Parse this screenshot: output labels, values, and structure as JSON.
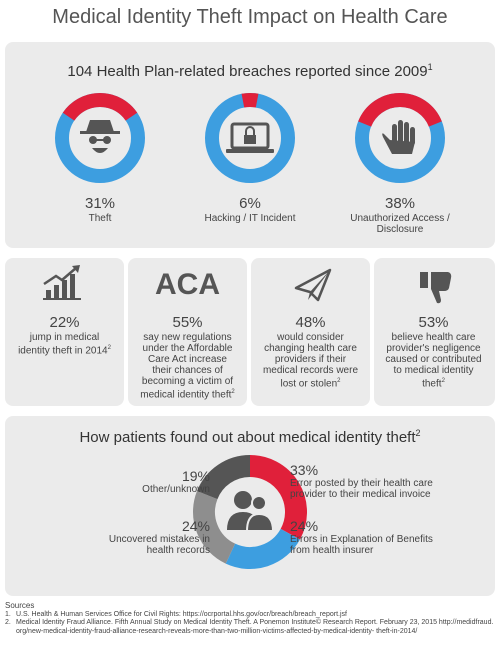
{
  "title": "Medical Identity Theft Impact on Health Care",
  "breaches": {
    "heading": "104 Health Plan-related breaches reported since 2009",
    "footnote": "1",
    "accent_color": "#e0203a",
    "base_color": "#3d9ee0",
    "donuts": [
      {
        "value": 31,
        "label": "31%",
        "caption": "Theft"
      },
      {
        "value": 6,
        "label": "6%",
        "caption": "Hacking / IT Incident"
      },
      {
        "value": 38,
        "label": "38%",
        "caption": "Unauthorized Access / Disclosure"
      }
    ]
  },
  "stats": [
    {
      "label": "22%",
      "text": "jump in medical identity theft in 2014",
      "footnote": "2"
    },
    {
      "icon_text": "ACA",
      "label": "55%",
      "text": "say new regulations under the Affordable Care Act increase their chances of becoming a victim of medical identity theft",
      "footnote": "2"
    },
    {
      "label": "48%",
      "text": "would consider changing health care providers if their medical records were lost or stolen",
      "footnote": "2"
    },
    {
      "label": "53%",
      "text": "believe health care provider's negligence caused or contributed to medical identity theft",
      "footnote": "2"
    }
  ],
  "discovery": {
    "heading": "How patients found out about medical identity theft",
    "footnote": "2",
    "segments": [
      {
        "value": 33,
        "label": "33%",
        "text": "Error posted by their health care provider to their medical invoice",
        "color": "#e0203a"
      },
      {
        "value": 24,
        "label": "24%",
        "text": "Errors in Explanation of Benefits from health insurer",
        "color": "#3d9ee0"
      },
      {
        "value": 24,
        "label": "24%",
        "text": "Uncovered mistakes in health records",
        "color": "#8e8e8e"
      },
      {
        "value": 19,
        "label": "19%",
        "text": "Other/unknown",
        "color": "#555555"
      }
    ]
  },
  "sources": {
    "heading": "Sources",
    "items": [
      {
        "num": "1.",
        "text": "U.S. Health & Human Services Office for Civil Rights: https://ocrportal.hhs.gov/ocr/breach/breach_report.jsf"
      },
      {
        "num": "2.",
        "text": "Medical Identity Fraud Alliance. Fifth Annual Study on Medical Identity Theft. A Ponemon Institute© Research Report. February 23, 2015 http://medidfraud.org/new-medical-identity-fraud-alliance-research-reveals-more-than-two-million-victims-affected-by-medical-identity- theft-in-2014/"
      }
    ]
  }
}
